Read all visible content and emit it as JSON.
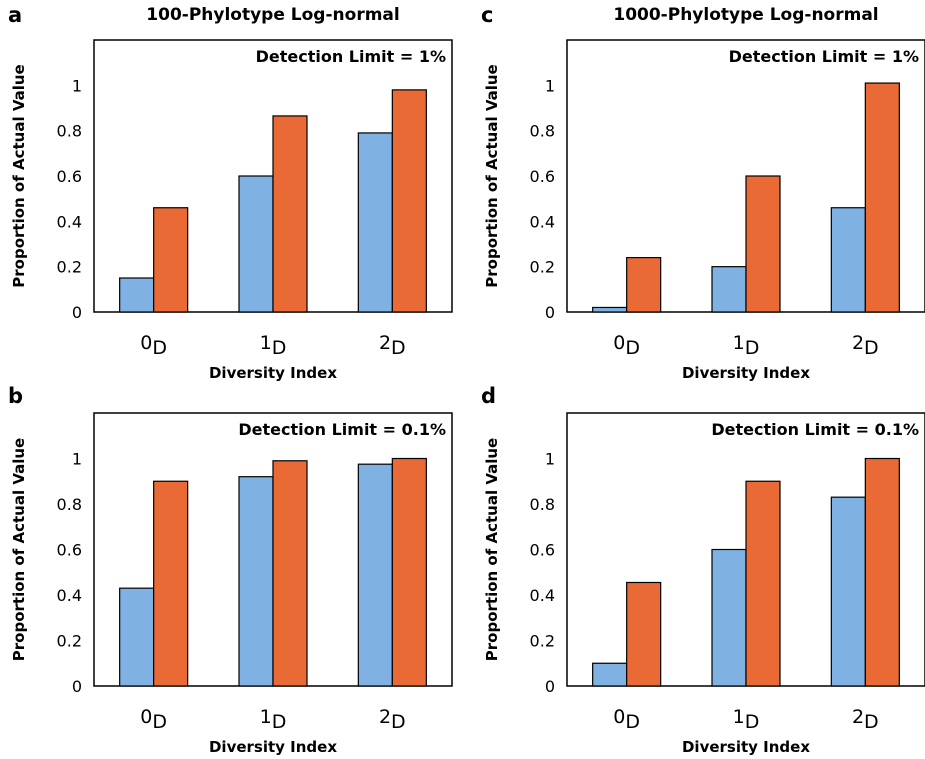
{
  "colors": {
    "series_blue": "#7fb2e3",
    "series_orange": "#ea6a35"
  },
  "chart_data": [
    {
      "panel_letter": "a",
      "title": "100-Phylotype Log-normal",
      "annotation": "Detection Limit = 1%",
      "type": "bar",
      "xlabel": "Diversity Index",
      "ylabel": "Proportion of Actual Value",
      "categories": [
        {
          "base": "0",
          "sub": "D"
        },
        {
          "base": "1",
          "sub": "D"
        },
        {
          "base": "2",
          "sub": "D"
        }
      ],
      "series": [
        {
          "values": [
            0.15,
            0.6,
            0.79
          ]
        },
        {
          "values": [
            0.46,
            0.865,
            0.98
          ]
        }
      ],
      "ylim": [
        0,
        1.2
      ],
      "yticks": [
        "0",
        "0.2",
        "0.4",
        "0.6",
        "0.8",
        "1"
      ],
      "grid": false
    },
    {
      "panel_letter": "c",
      "title": "1000-Phylotype Log-normal",
      "annotation": "Detection Limit = 1%",
      "type": "bar",
      "xlabel": "Diversity Index",
      "ylabel": "Proportion of Actual Value",
      "categories": [
        {
          "base": "0",
          "sub": "D"
        },
        {
          "base": "1",
          "sub": "D"
        },
        {
          "base": "2",
          "sub": "D"
        }
      ],
      "series": [
        {
          "values": [
            0.02,
            0.2,
            0.46
          ]
        },
        {
          "values": [
            0.24,
            0.6,
            1.01
          ]
        }
      ],
      "ylim": [
        0,
        1.2
      ],
      "yticks": [
        "0",
        "0.2",
        "0.4",
        "0.6",
        "0.8",
        "1"
      ],
      "grid": false
    },
    {
      "panel_letter": "b",
      "title": "",
      "annotation": "Detection Limit = 0.1%",
      "type": "bar",
      "xlabel": "Diversity Index",
      "ylabel": "Proportion of Actual Value",
      "categories": [
        {
          "base": "0",
          "sub": "D"
        },
        {
          "base": "1",
          "sub": "D"
        },
        {
          "base": "2",
          "sub": "D"
        }
      ],
      "series": [
        {
          "values": [
            0.43,
            0.92,
            0.975
          ]
        },
        {
          "values": [
            0.9,
            0.99,
            1.0
          ]
        }
      ],
      "ylim": [
        0,
        1.2
      ],
      "yticks": [
        "0",
        "0.2",
        "0.4",
        "0.6",
        "0.8",
        "1"
      ],
      "grid": false
    },
    {
      "panel_letter": "d",
      "title": "",
      "annotation": "Detection Limit = 0.1%",
      "type": "bar",
      "xlabel": "Diversity Index",
      "ylabel": "Proportion of Actual Value",
      "categories": [
        {
          "base": "0",
          "sub": "D"
        },
        {
          "base": "1",
          "sub": "D"
        },
        {
          "base": "2",
          "sub": "D"
        }
      ],
      "series": [
        {
          "values": [
            0.1,
            0.6,
            0.83
          ]
        },
        {
          "values": [
            0.455,
            0.9,
            1.0
          ]
        }
      ],
      "ylim": [
        0,
        1.2
      ],
      "yticks": [
        "0",
        "0.2",
        "0.4",
        "0.6",
        "0.8",
        "1"
      ],
      "grid": false
    }
  ]
}
